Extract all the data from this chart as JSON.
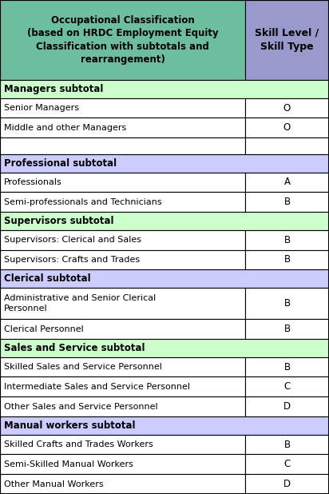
{
  "header_col1": "Occupational Classification\n(based on HRDC Employment Equity\nClassification with subtotals and\nrearrangement)",
  "header_col2": "Skill Level /\nSkill Type",
  "header_bg": "#6dbe9e",
  "header2_bg": "#9999cc",
  "subtotal_bg_green": "#ccffcc",
  "subtotal_bg_purple": "#ccccff",
  "data_bg": "#ffffff",
  "border_color": "#000000",
  "rows": [
    {
      "type": "subtotal",
      "col1": "Managers subtotal",
      "col2": "",
      "subtotal_color": "green"
    },
    {
      "type": "data",
      "col1": "Senior Managers",
      "col2": "O"
    },
    {
      "type": "data",
      "col1": "Middle and other Managers",
      "col2": "O"
    },
    {
      "type": "data",
      "col1": "",
      "col2": ""
    },
    {
      "type": "subtotal",
      "col1": "Professional subtotal",
      "col2": "",
      "subtotal_color": "purple"
    },
    {
      "type": "data",
      "col1": "Professionals",
      "col2": "A"
    },
    {
      "type": "data",
      "col1": "Semi-professionals and Technicians",
      "col2": "B"
    },
    {
      "type": "subtotal",
      "col1": "Supervisors subtotal",
      "col2": "",
      "subtotal_color": "green"
    },
    {
      "type": "data",
      "col1": "Supervisors: Clerical and Sales",
      "col2": "B"
    },
    {
      "type": "data",
      "col1": "Supervisors: Crafts and Trades",
      "col2": "B"
    },
    {
      "type": "subtotal",
      "col1": "Clerical subtotal",
      "col2": "",
      "subtotal_color": "purple"
    },
    {
      "type": "data",
      "col1": "Administrative and Senior Clerical\nPersonnel",
      "col2": "B"
    },
    {
      "type": "data",
      "col1": "Clerical Personnel",
      "col2": "B"
    },
    {
      "type": "subtotal",
      "col1": "Sales and Service subtotal",
      "col2": "",
      "subtotal_color": "green"
    },
    {
      "type": "data",
      "col1": "Skilled Sales and Service Personnel",
      "col2": "B"
    },
    {
      "type": "data",
      "col1": "Intermediate Sales and Service Personnel",
      "col2": "C"
    },
    {
      "type": "data",
      "col1": "Other Sales and Service Personnel",
      "col2": "D"
    },
    {
      "type": "subtotal",
      "col1": "Manual workers subtotal",
      "col2": "",
      "subtotal_color": "purple"
    },
    {
      "type": "data",
      "col1": "Skilled Crafts and Trades Workers",
      "col2": "B"
    },
    {
      "type": "data",
      "col1": "Semi-Skilled Manual Workers",
      "col2": "C"
    },
    {
      "type": "data",
      "col1": "Other Manual Workers",
      "col2": "D"
    }
  ],
  "col_split": 0.745,
  "figsize": [
    4.12,
    6.18
  ],
  "dpi": 100
}
